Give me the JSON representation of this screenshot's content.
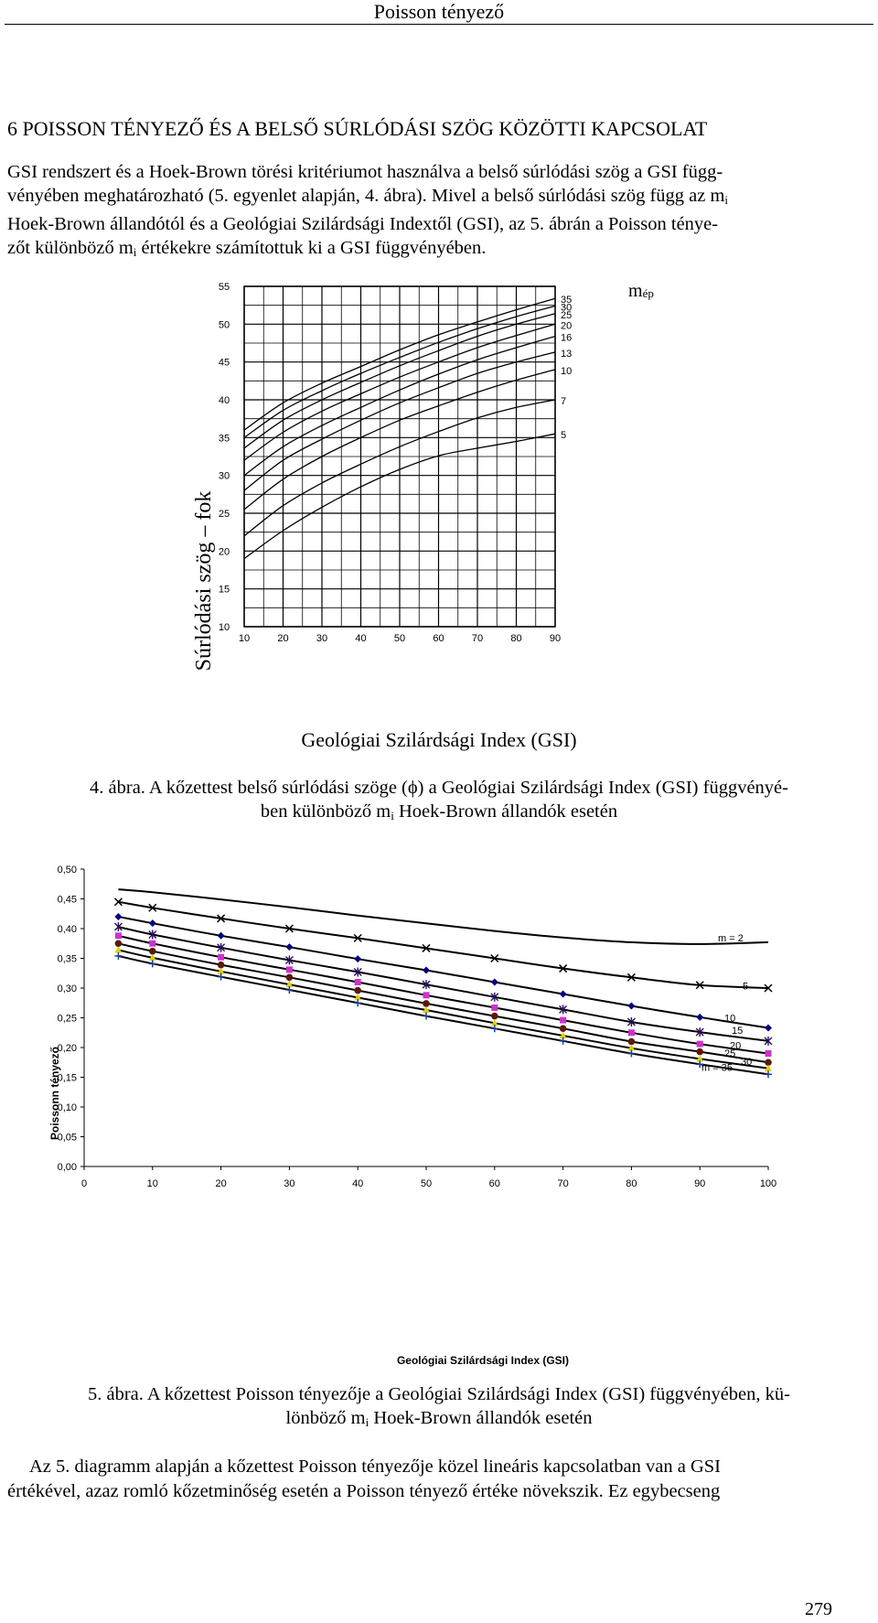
{
  "running_head": "Poisson tényező",
  "section_heading": "6   POISSON TÉNYEZŐ ÉS A BELSŐ SÚRLÓDÁSI SZÖG KÖZÖTTI KAPCSOLAT",
  "para1": {
    "line1": "GSI rendszert és a Hoek-Brown törési kritériumot használva a belső súrlódási szög a GSI függ-",
    "line2_pre": "vényében meghatározható (5. egyenlet alapján, 4. ábra). Mivel a belső súrlódási szög függ az m",
    "sub_i": "i",
    "line3": "Hoek-Brown állandótól és a Geológiai Szilárdsági Indextől (GSI), az 5. ábrán a Poisson ténye-",
    "line4_pre": "zőt különböző m",
    "line4_post": " értékekre számítottuk ki a GSI függvényében."
  },
  "caption4": {
    "line1": "4. ábra. A kőzettest belső súrlódási szöge (ϕ) a Geológiai Szilárdsági Index (GSI) függvényé-",
    "line2_pre": "ben különböző m",
    "line2_post": " Hoek-Brown állandók esetén"
  },
  "caption5": {
    "line1": "5. ábra. A kőzettest Poisson tényezője a Geológiai Szilárdsági Index (GSI) függvényében, kü-",
    "line2_pre": "lönböző m",
    "line2_post": " Hoek-Brown állandók esetén"
  },
  "para2": {
    "line1": "Az 5. diagramm alapján a kőzettest Poisson tényezője közel lineáris kapcsolatban van a GSI",
    "line2": "értékével, azaz romló kőzetminőség esetén a Poisson tényező értéke növekszik. Ez egybecseng"
  },
  "page_number": "279",
  "chart_data": [
    {
      "type": "line",
      "title": "",
      "xlabel": "Geológiai Szilárdsági Index (GSI)",
      "ylabel": "Súrlódási szög – fok",
      "xlim": [
        10,
        90
      ],
      "ylim": [
        10,
        55
      ],
      "x_ticks": [
        "10",
        "20",
        "30",
        "40",
        "50",
        "60",
        "70",
        "80",
        "90"
      ],
      "y_ticks": [
        "10",
        "15",
        "20",
        "25",
        "30",
        "35",
        "40",
        "45",
        "50",
        "55"
      ],
      "legend_title": "m",
      "legend_title_sub": "ép",
      "grid": true,
      "series": [
        {
          "name": "35",
          "x": [
            10,
            20,
            30,
            40,
            50,
            60,
            70,
            80,
            90
          ],
          "values": [
            36,
            39.6,
            42.2,
            44.4,
            46.6,
            48.6,
            50.3,
            51.9,
            53.4
          ]
        },
        {
          "name": "30",
          "x": [
            10,
            20,
            30,
            40,
            50,
            60,
            70,
            80,
            90
          ],
          "values": [
            35,
            38.6,
            41.2,
            43.5,
            45.6,
            47.6,
            49.4,
            51.0,
            52.4
          ]
        },
        {
          "name": "25",
          "x": [
            10,
            20,
            30,
            40,
            50,
            60,
            70,
            80,
            90
          ],
          "values": [
            33.6,
            37.3,
            40.0,
            42.3,
            44.5,
            46.5,
            48.4,
            50.0,
            51.4
          ]
        },
        {
          "name": "20",
          "x": [
            10,
            20,
            30,
            40,
            50,
            60,
            70,
            80,
            90
          ],
          "values": [
            32,
            35.7,
            38.5,
            40.8,
            43.0,
            45.0,
            46.9,
            48.5,
            50.0
          ]
        },
        {
          "name": "16",
          "x": [
            10,
            20,
            30,
            40,
            50,
            60,
            70,
            80,
            90
          ],
          "values": [
            30,
            33.8,
            36.6,
            39.0,
            41.3,
            43.4,
            45.3,
            46.9,
            48.4
          ]
        },
        {
          "name": "13",
          "x": [
            10,
            20,
            30,
            40,
            50,
            60,
            70,
            80,
            90
          ],
          "values": [
            28,
            32.0,
            34.8,
            37.3,
            39.6,
            41.6,
            43.5,
            45.0,
            46.3
          ]
        },
        {
          "name": "10",
          "x": [
            10,
            20,
            30,
            40,
            50,
            60,
            70,
            80,
            90
          ],
          "values": [
            25.5,
            29.5,
            32.5,
            35.0,
            37.3,
            39.2,
            41.0,
            42.6,
            44.0
          ]
        },
        {
          "name": "7",
          "x": [
            10,
            20,
            30,
            40,
            50,
            60,
            70,
            80,
            90
          ],
          "values": [
            22,
            26.0,
            29.0,
            31.5,
            33.8,
            35.8,
            37.6,
            39.0,
            40.0
          ]
        },
        {
          "name": "5",
          "x": [
            10,
            20,
            30,
            40,
            50,
            60,
            70,
            80,
            90
          ],
          "values": [
            19,
            22.7,
            25.8,
            28.5,
            30.8,
            32.6,
            33.6,
            34.5,
            35.5
          ]
        }
      ]
    },
    {
      "type": "line",
      "title": "",
      "xlabel": "Geológiai Szilárdsági Index (GSI)",
      "ylabel": "Poissonn tényező",
      "xlim": [
        0,
        100
      ],
      "ylim": [
        0,
        0.5
      ],
      "x_ticks": [
        "0",
        "10",
        "20",
        "30",
        "40",
        "50",
        "60",
        "70",
        "80",
        "90",
        "100"
      ],
      "y_ticks": [
        "0,00",
        "0,05",
        "0,10",
        "0,15",
        "0,20",
        "0,25",
        "0,30",
        "0,35",
        "0,40",
        "0,45",
        "0,50"
      ],
      "grid": false,
      "series_colors": [
        "#000000",
        "#000000",
        "#000080",
        "#1a1a1a",
        "#cc33cc",
        "#5a1a0a",
        "#e0d000",
        "#2040a0"
      ],
      "series": [
        {
          "name": "m = 2",
          "x": [
            5,
            10,
            20,
            30,
            40,
            50,
            60,
            70,
            80,
            90,
            100
          ],
          "values": [
            0.466,
            0.461,
            0.449,
            0.436,
            0.422,
            0.409,
            0.396,
            0.385,
            0.377,
            0.374,
            0.377
          ]
        },
        {
          "name": "5",
          "x": [
            5,
            10,
            20,
            30,
            40,
            50,
            60,
            70,
            80,
            90,
            100
          ],
          "values": [
            0.445,
            0.435,
            0.417,
            0.4,
            0.384,
            0.367,
            0.35,
            0.333,
            0.318,
            0.305,
            0.3
          ]
        },
        {
          "name": "10",
          "x": [
            5,
            10,
            20,
            30,
            40,
            50,
            60,
            70,
            80,
            90,
            100
          ],
          "values": [
            0.42,
            0.409,
            0.388,
            0.369,
            0.349,
            0.33,
            0.31,
            0.29,
            0.27,
            0.251,
            0.233
          ]
        },
        {
          "name": "15",
          "x": [
            5,
            10,
            20,
            30,
            40,
            50,
            60,
            70,
            80,
            90,
            100
          ],
          "values": [
            0.403,
            0.39,
            0.368,
            0.347,
            0.327,
            0.306,
            0.285,
            0.264,
            0.243,
            0.226,
            0.211
          ]
        },
        {
          "name": "20",
          "x": [
            5,
            10,
            20,
            30,
            40,
            50,
            60,
            70,
            80,
            90,
            100
          ],
          "values": [
            0.388,
            0.375,
            0.352,
            0.331,
            0.31,
            0.288,
            0.267,
            0.246,
            0.225,
            0.206,
            0.19
          ]
        },
        {
          "name": "25",
          "x": [
            5,
            10,
            20,
            30,
            40,
            50,
            60,
            70,
            80,
            90,
            100
          ],
          "values": [
            0.375,
            0.362,
            0.339,
            0.318,
            0.296,
            0.274,
            0.253,
            0.232,
            0.21,
            0.193,
            0.175
          ]
        },
        {
          "name": "30",
          "x": [
            5,
            10,
            20,
            30,
            40,
            50,
            60,
            70,
            80,
            90,
            100
          ],
          "values": [
            0.364,
            0.351,
            0.328,
            0.306,
            0.284,
            0.263,
            0.241,
            0.22,
            0.199,
            0.181,
            0.165
          ]
        },
        {
          "name": "m = 35",
          "x": [
            5,
            10,
            20,
            30,
            40,
            50,
            60,
            70,
            80,
            90,
            100
          ],
          "values": [
            0.354,
            0.341,
            0.319,
            0.297,
            0.275,
            0.253,
            0.232,
            0.211,
            0.19,
            0.172,
            0.155
          ]
        }
      ]
    }
  ]
}
